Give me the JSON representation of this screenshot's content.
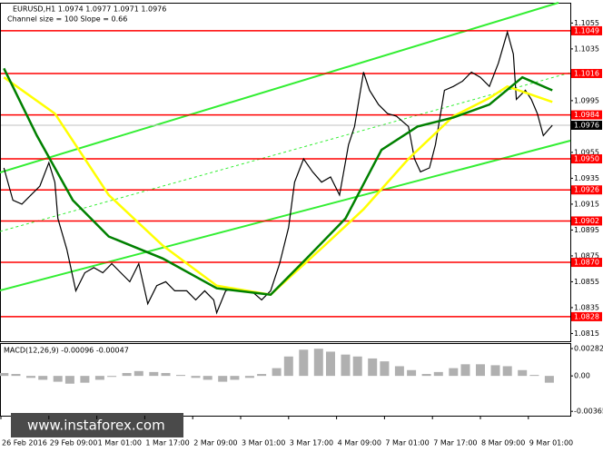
{
  "chart_data": [
    {
      "type": "line",
      "title": "EURUSD,H1  1.0974 1.0977 1.0971 1.0976",
      "subtitle": "Channel size = 100 Slope = 0.66",
      "watermark": "www.instaforex.com",
      "xlim": [
        0,
        190
      ],
      "xticks": [
        {
          "value": 0,
          "label": "26 Feb 2016"
        },
        {
          "value": 16,
          "label": "29 Feb 09:00"
        },
        {
          "value": 32,
          "label": "1 Mar 01:00"
        },
        {
          "value": 48,
          "label": "1 Mar 17:00"
        },
        {
          "value": 64,
          "label": "2 Mar 09:00"
        },
        {
          "value": 80,
          "label": "3 Mar 01:00"
        },
        {
          "value": 96,
          "label": "3 Mar 17:00"
        },
        {
          "value": 112,
          "label": "4 Mar 09:00"
        },
        {
          "value": 128,
          "label": "7 Mar 01:00"
        },
        {
          "value": 144,
          "label": "7 Mar 17:00"
        },
        {
          "value": 160,
          "label": "8 Mar 09:00"
        },
        {
          "value": 176,
          "label": "9 Mar 01:00"
        }
      ],
      "ylim": [
        1.0809,
        1.107
      ],
      "yticks": [
        1.1055,
        1.1035,
        1.1015,
        1.0995,
        1.0975,
        1.0955,
        1.0935,
        1.0915,
        1.0895,
        1.0875,
        1.0855,
        1.0835,
        1.0815
      ],
      "levels": [
        1.1049,
        1.1016,
        1.0984,
        {
          "value": 1.095,
          "label": "1.0950"
        },
        1.0926,
        1.0902,
        {
          "value": 1.087,
          "label": "1.0870"
        },
        1.0828
      ],
      "level_color": "#ff0000",
      "current": 1.0976,
      "series": [
        {
          "color": "#000000",
          "x": [
            1,
            4,
            7,
            10,
            13,
            16,
            18,
            19,
            22,
            25,
            28,
            31,
            34,
            37,
            40,
            43,
            46,
            49,
            52,
            55,
            58,
            62,
            65,
            68,
            71,
            72,
            75,
            78,
            81,
            84,
            87,
            90,
            93,
            96,
            98,
            101,
            104,
            107,
            110,
            113,
            116,
            118,
            121,
            123,
            126,
            129,
            132,
            136,
            138,
            140,
            143,
            145,
            148,
            151,
            154,
            157,
            160,
            163,
            166,
            169,
            171,
            172,
            175,
            177,
            179,
            181,
            184
          ],
          "values": [
            1.0943,
            1.0918,
            1.0915,
            1.0922,
            1.0929,
            1.0947,
            1.0932,
            1.0904,
            1.088,
            1.0848,
            1.0862,
            1.0866,
            1.0862,
            1.0869,
            1.0862,
            1.0855,
            1.0869,
            1.0838,
            1.0852,
            1.0855,
            1.0848,
            1.0848,
            1.0841,
            1.0848,
            1.0841,
            1.0831,
            1.0848,
            1.085,
            1.0848,
            1.0847,
            1.0841,
            1.0848,
            1.0869,
            1.0897,
            1.0932,
            1.095,
            1.094,
            1.0932,
            1.0936,
            1.0922,
            1.0961,
            1.0975,
            1.1017,
            1.1003,
            1.0992,
            1.0985,
            1.0983,
            1.0975,
            1.095,
            1.094,
            1.0943,
            1.0961,
            1.1003,
            1.1006,
            1.101,
            1.1017,
            1.1013,
            1.1006,
            1.1024,
            1.1048,
            1.1031,
            1.0996,
            1.1003,
            1.0996,
            1.0985,
            1.0968,
            1.0976
          ]
        },
        {
          "color": "#ffff00",
          "x": [
            1,
            18,
            36,
            54,
            72,
            90,
            108,
            121,
            136,
            151,
            163,
            169,
            184
          ],
          "values": [
            1.1013,
            1.0985,
            1.0922,
            1.0883,
            1.0852,
            1.0845,
            1.0883,
            1.0911,
            1.095,
            1.0983,
            1.0997,
            1.1006,
            1.0994
          ]
        },
        {
          "color": "#008000",
          "x": [
            1,
            12,
            24,
            36,
            54,
            72,
            90,
            102,
            115,
            127,
            139,
            151,
            163,
            174,
            184
          ],
          "values": [
            1.102,
            1.0968,
            1.0918,
            1.089,
            1.0873,
            1.085,
            1.0845,
            1.0873,
            1.0904,
            1.0957,
            1.0975,
            1.0982,
            1.0992,
            1.1013,
            1.1003
          ]
        }
      ]
    },
    {
      "type": "bar",
      "title": "MACD(12,26,9) -0.00096 -0.00047",
      "xlim": [
        0,
        190
      ],
      "ylim": [
        -0.0041,
        0.00329
      ],
      "yticks": [
        0.00282,
        {
          "value": 0,
          "label": "0.00"
        },
        -0.00365
      ],
      "color": "#b0b0b0",
      "x": [
        1,
        5,
        10,
        14,
        19,
        23,
        28,
        33,
        37,
        42,
        46,
        51,
        55,
        60,
        65,
        69,
        74,
        78,
        83,
        87,
        92,
        96,
        101,
        106,
        110,
        115,
        119,
        124,
        128,
        133,
        137,
        142,
        146,
        151,
        155,
        160,
        165,
        169,
        174,
        178,
        183
      ],
      "values": [
        0.0003,
        0.0002,
        -0.0002,
        -0.0004,
        -0.0006,
        -0.0008,
        -0.0007,
        -0.0004,
        -0.0001,
        0.0003,
        0.0005,
        0.0004,
        0.0003,
        0.0001,
        -0.0002,
        -0.0004,
        -0.0006,
        -0.0004,
        -0.0002,
        0.0002,
        0.0008,
        0.002,
        0.0027,
        0.0028,
        0.0025,
        0.0022,
        0.002,
        0.0018,
        0.0015,
        0.001,
        0.0006,
        0.0002,
        0.0004,
        0.0008,
        0.0012,
        0.0012,
        0.0011,
        0.001,
        0.0006,
        0.0001,
        -0.0007
      ]
    }
  ]
}
